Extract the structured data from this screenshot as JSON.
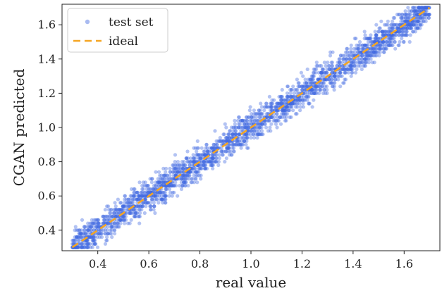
{
  "chart_data": {
    "type": "scatter",
    "xlabel": "real value",
    "ylabel": "CGAN predicted",
    "xlim": [
      0.26,
      1.74
    ],
    "ylim": [
      0.28,
      1.72
    ],
    "xticks": [
      0.4,
      0.6,
      0.8,
      1.0,
      1.2,
      1.4,
      1.6
    ],
    "yticks": [
      0.4,
      0.6,
      0.8,
      1.0,
      1.2,
      1.4,
      1.6
    ],
    "xtick_labels": [
      "0.4",
      "0.6",
      "0.8",
      "1.0",
      "1.2",
      "1.4",
      "1.6"
    ],
    "ytick_labels": [
      "0.4",
      "0.6",
      "0.8",
      "1.0",
      "1.2",
      "1.4",
      "1.6"
    ],
    "grid": false,
    "legend_position": "upper-left",
    "series": [
      {
        "name": "test set",
        "kind": "scatter",
        "color": "#4169e1",
        "x_range": [
          0.3,
          1.7
        ],
        "y_range": [
          0.3,
          1.7
        ],
        "approx_count": 2600,
        "description_spread": "points cluster around y = x with spread about ±0.08 in y; y is quantised to steps of ~0.02"
      },
      {
        "name": "ideal",
        "kind": "line",
        "style": "dashed",
        "color": "#f5a623",
        "x": [
          0.3,
          1.7
        ],
        "y": [
          0.3,
          1.7
        ]
      }
    ]
  }
}
